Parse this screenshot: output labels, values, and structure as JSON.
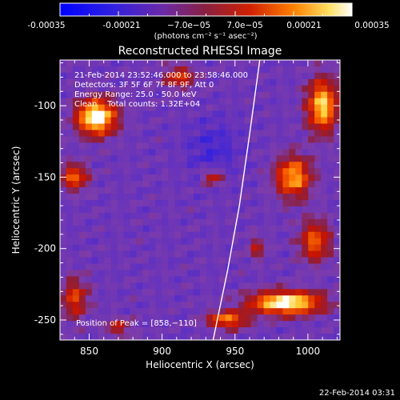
{
  "colorbar": {
    "ticks": [
      "-0.00035",
      "-0.00021",
      "−7.0e−05",
      "7.0e−05",
      "0.00021",
      "0.00035"
    ],
    "unit_label": "(photons cm⁻² s⁻¹ asec⁻²)"
  },
  "chart_data": {
    "type": "heatmap",
    "title": "Reconstructed RHESSI Image",
    "xlabel": "Heliocentric X (arcsec)",
    "ylabel": "Heliocentric Y (arcsec)",
    "xlim": [
      830,
      1022
    ],
    "ylim": [
      -264,
      -68
    ],
    "xticks": [
      850,
      900,
      950,
      1000
    ],
    "yticks": [
      -100,
      -150,
      -200,
      -250
    ],
    "color_range": [
      -0.00035,
      0.00035
    ],
    "colormap": "blue-purple-red-yellow-white",
    "annotations": [
      "21-Feb-2014 23:52:46.000 to 23:58:46.000",
      "Detectors: 3F 5F 6F 7F 8F 9F, Att 0",
      "Energy Range: 25.0 - 50.0 keV",
      "Clean    Total counts: 1.32E+04"
    ],
    "peak": {
      "label": "Position of Peak = [858,−110]",
      "x": 858,
      "y": -110
    },
    "limb": [
      [
        935,
        -264
      ],
      [
        945,
        -215
      ],
      [
        953,
        -170
      ],
      [
        960,
        -120
      ],
      [
        967,
        -68
      ]
    ],
    "hotspots": [
      {
        "x": 855,
        "y": -108,
        "amp": 1.0,
        "sx": 13,
        "sy": 12
      },
      {
        "x": 840,
        "y": -150,
        "amp": 0.55,
        "sx": 9,
        "sy": 9
      },
      {
        "x": 912,
        "y": -80,
        "amp": 0.45,
        "sx": 10,
        "sy": 8
      },
      {
        "x": 1010,
        "y": -100,
        "amp": 0.8,
        "sx": 10,
        "sy": 18
      },
      {
        "x": 990,
        "y": -150,
        "amp": 0.7,
        "sx": 12,
        "sy": 14
      },
      {
        "x": 1005,
        "y": -195,
        "amp": 0.55,
        "sx": 10,
        "sy": 14
      },
      {
        "x": 985,
        "y": -238,
        "amp": 0.95,
        "sx": 24,
        "sy": 8
      },
      {
        "x": 945,
        "y": -250,
        "amp": 0.6,
        "sx": 14,
        "sy": 6
      },
      {
        "x": 935,
        "y": -150,
        "amp": 0.45,
        "sx": 7,
        "sy": 5
      },
      {
        "x": 840,
        "y": -235,
        "amp": 0.45,
        "sx": 9,
        "sy": 14
      },
      {
        "x": 870,
        "y": -255,
        "amp": 0.35,
        "sx": 9,
        "sy": 6
      },
      {
        "x": 965,
        "y": -200,
        "amp": 0.3,
        "sx": 6,
        "sy": 8
      }
    ]
  },
  "footer": {
    "timestamp": "22-Feb-2014 03:31"
  }
}
